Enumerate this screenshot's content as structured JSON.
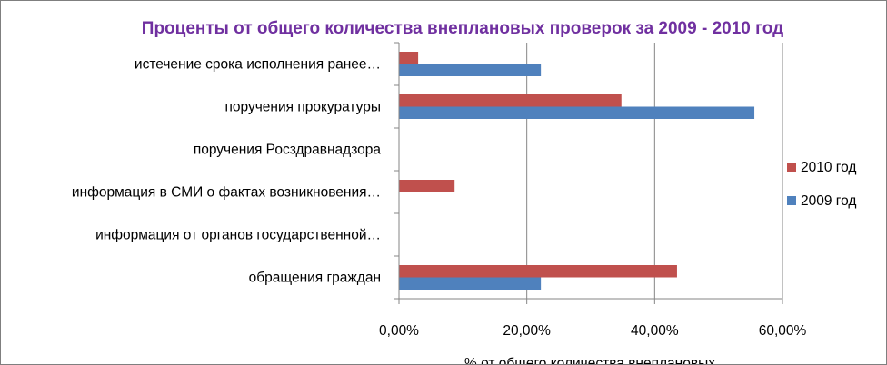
{
  "chart_data": {
    "type": "bar",
    "orientation": "horizontal",
    "title": "Проценты от общего количества внеплановых проверок за 2009 - 2010 год",
    "categories": [
      "обращения граждан",
      "информация от органов государственной…",
      "информация в СМИ о фактах возникновения…",
      "поручения Росздравнадзора",
      "поручения прокуратуры",
      "истечение срока исполнения ранее…"
    ],
    "series": [
      {
        "name": "2009 год",
        "color": "#4f81bd",
        "values": [
          22.2,
          0,
          0,
          0,
          55.6,
          22.2
        ]
      },
      {
        "name": "2010 год",
        "color": "#c0504d",
        "values": [
          43.5,
          0,
          8.7,
          0,
          34.8,
          3.0
        ]
      }
    ],
    "xlim": [
      0,
      60
    ],
    "xticks": [
      0,
      20,
      40,
      60
    ],
    "xtick_labels": [
      "0,00%",
      "20,00%",
      "40,00%",
      "60,00%"
    ],
    "xlabel": "% от общего количества внеплановых",
    "ylabel": "",
    "grid": "vertical",
    "legend": {
      "position": "right",
      "entries": [
        "2010 год",
        "2009 год"
      ]
    }
  }
}
